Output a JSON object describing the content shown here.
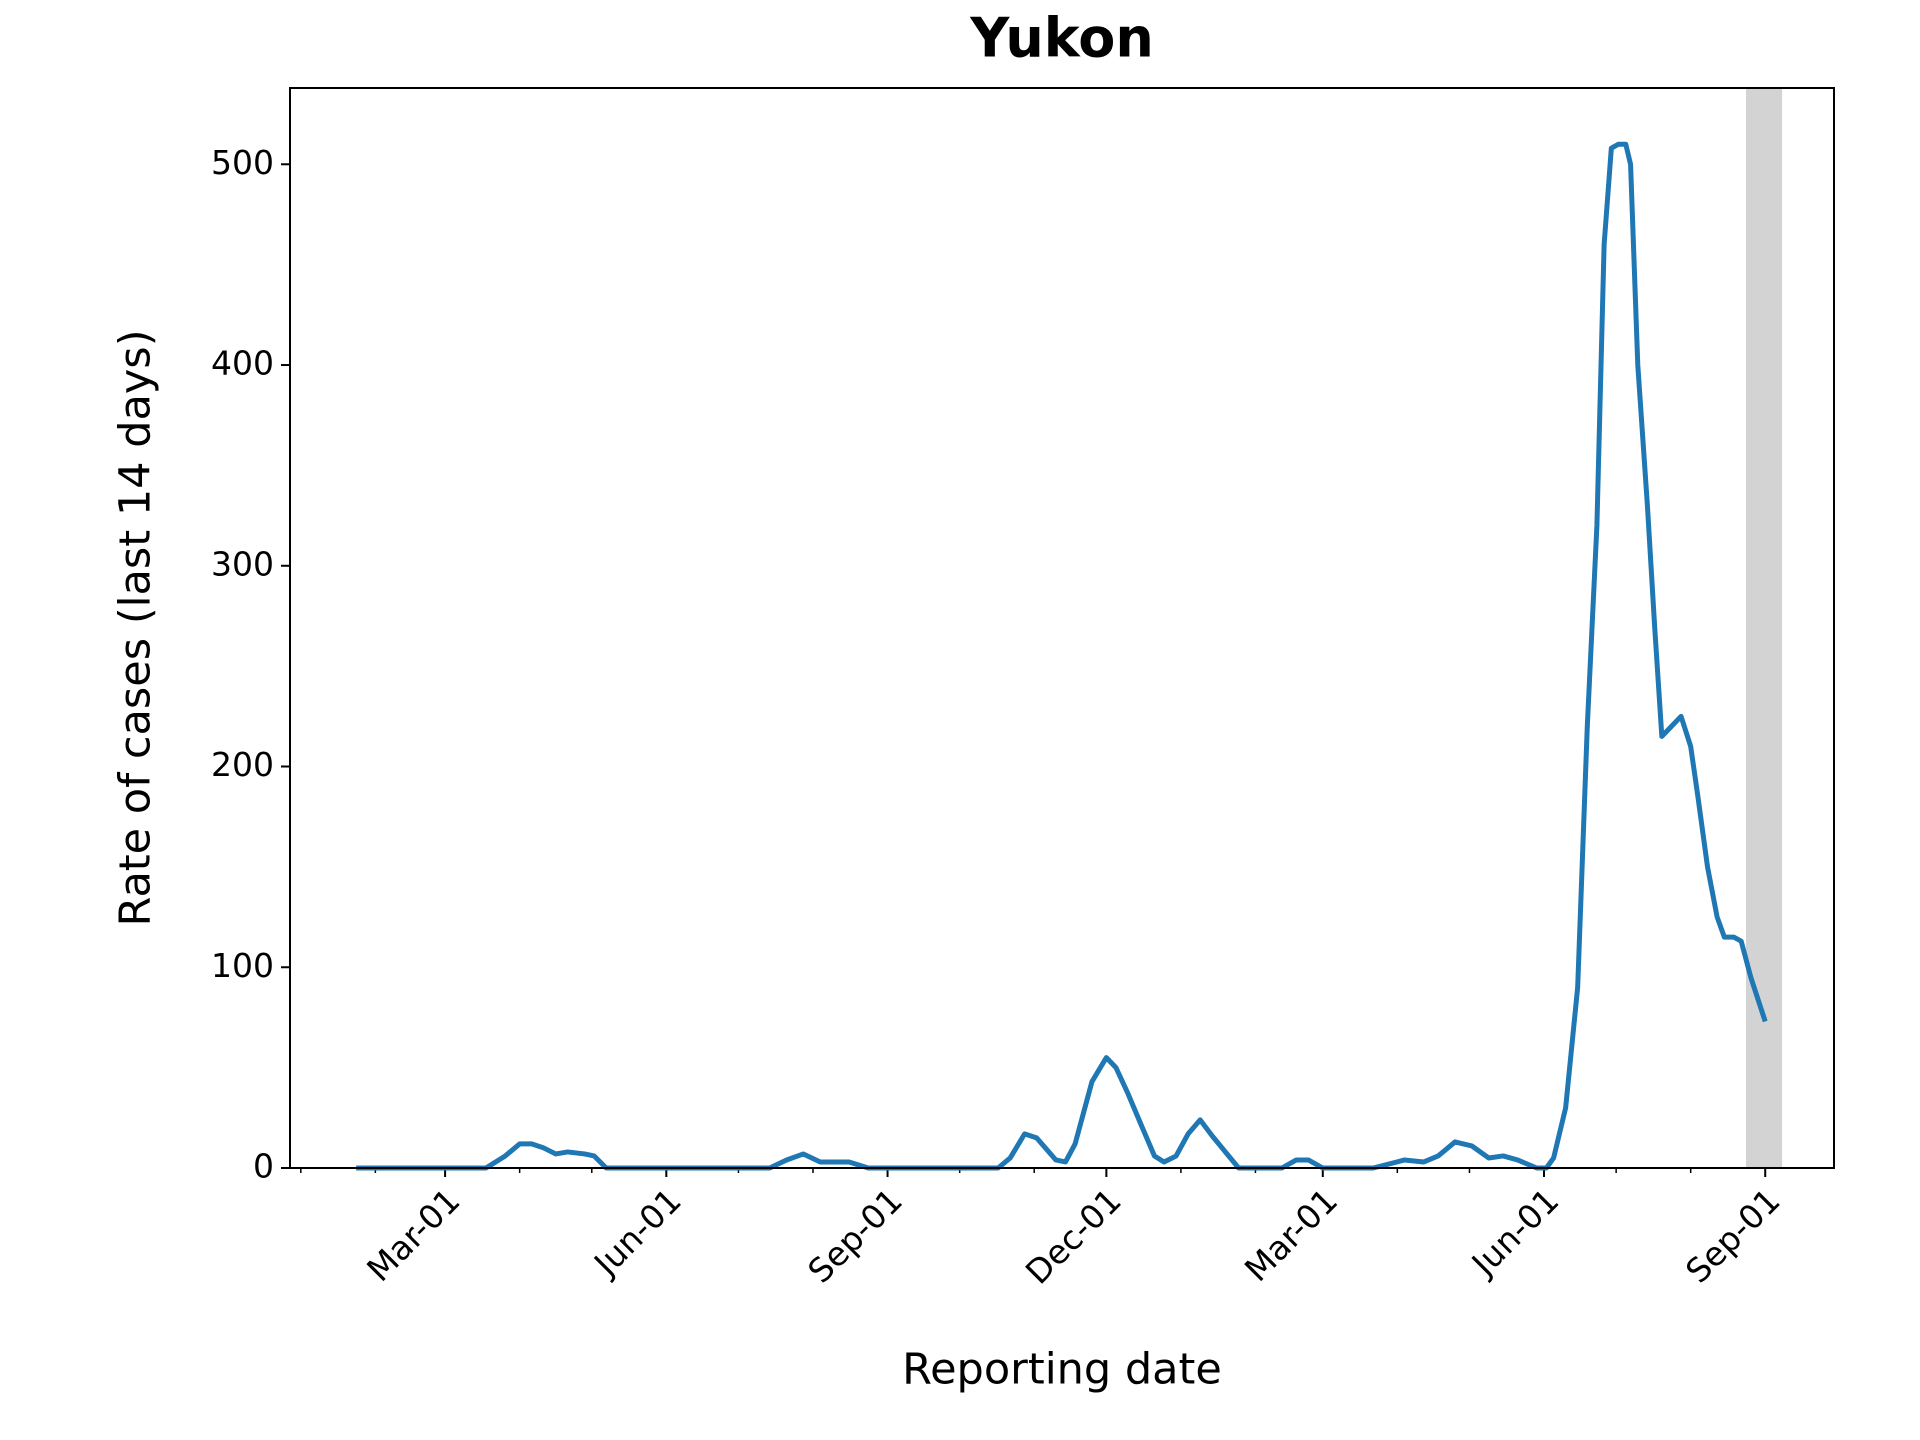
{
  "chart_data": {
    "type": "line",
    "title": "Yukon",
    "xlabel": "Reporting date",
    "ylabel": "Rate of cases (last 14 days)",
    "x": [
      23,
      77,
      85,
      91,
      96,
      101,
      106,
      111,
      118,
      122,
      127,
      195,
      202,
      209,
      216,
      228,
      236,
      290,
      295,
      301,
      306,
      314,
      318,
      322,
      329,
      335,
      339,
      344,
      350,
      355,
      359,
      364,
      369,
      374,
      379,
      390,
      408,
      414,
      419,
      425,
      446,
      459,
      467,
      473,
      480,
      487,
      494,
      500,
      506,
      514,
      518,
      521,
      526,
      531,
      535,
      539,
      542,
      545,
      548,
      551,
      553,
      556,
      560,
      563,
      566,
      570,
      574,
      578,
      581,
      585,
      589,
      592,
      596,
      599,
      603,
      609
    ],
    "series": [
      {
        "color": "#1f77b4",
        "values": [
          0,
          0,
          6,
          12,
          12,
          10,
          7,
          8,
          7,
          6,
          0,
          0,
          4,
          7,
          3,
          3,
          0,
          0,
          5,
          17,
          15,
          4,
          3,
          12,
          43,
          55,
          50,
          37,
          20,
          6,
          3,
          6,
          17,
          24,
          16,
          0,
          0,
          4,
          4,
          0,
          0,
          4,
          3,
          6,
          13,
          11,
          5,
          6,
          4,
          0,
          0,
          5,
          30,
          90,
          220,
          320,
          460,
          508,
          510,
          510,
          500,
          400,
          330,
          270,
          215,
          220,
          225,
          210,
          185,
          150,
          125,
          115,
          115,
          113,
          95,
          73
        ]
      }
    ],
    "xlim": [
      -4.5,
      637.6
    ],
    "xticks": [
      {
        "value": 60,
        "label": "Mar-01"
      },
      {
        "value": 152,
        "label": "Jun-01"
      },
      {
        "value": 244,
        "label": "Sep-01"
      },
      {
        "value": 335,
        "label": "Dec-01"
      },
      {
        "value": 425,
        "label": "Mar-01"
      },
      {
        "value": 517,
        "label": "Jun-01"
      },
      {
        "value": 609,
        "label": "Sep-01"
      }
    ],
    "xminorticks": [
      0,
      31,
      91,
      121,
      182,
      213,
      274,
      305,
      366,
      397,
      456,
      486,
      547,
      578
    ],
    "ylim": [
      0,
      538
    ],
    "yticks": [
      0,
      100,
      200,
      300,
      400,
      500
    ],
    "shaded_span": {
      "range": [
        601,
        616
      ],
      "color": "#d3d3d3"
    }
  }
}
